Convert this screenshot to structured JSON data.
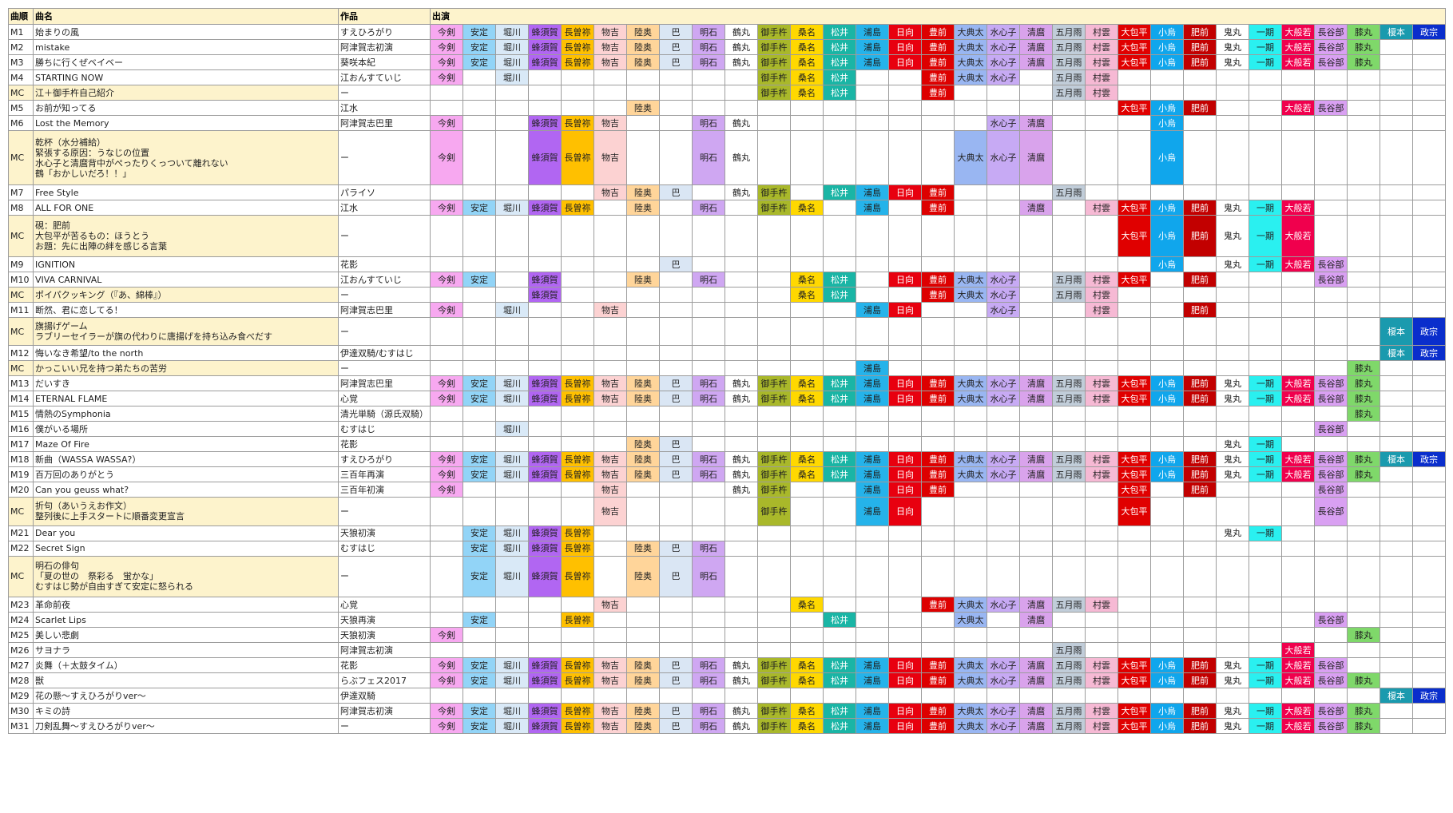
{
  "headers": {
    "order": "曲順",
    "title": "曲名",
    "work": "作品",
    "cast": "出演"
  },
  "performers": [
    {
      "key": "imatsurugi",
      "label": "今剣",
      "color": "#f7a8f0",
      "textColor": "#222222"
    },
    {
      "key": "yasusada",
      "label": "安定",
      "color": "#92d4f7",
      "textColor": "#222222"
    },
    {
      "key": "horikawa",
      "label": "堀川",
      "color": "#d9e9f7",
      "textColor": "#222222"
    },
    {
      "key": "hachisuka",
      "label": "蜂須賀",
      "color": "#b166f2",
      "textColor": "#222222"
    },
    {
      "key": "nagasone",
      "label": "長曽祢",
      "color": "#ffc000",
      "textColor": "#222222"
    },
    {
      "key": "monoyoshi",
      "label": "物吉",
      "color": "#fcd2d2",
      "textColor": "#222222"
    },
    {
      "key": "mutsunokami",
      "label": "陸奥",
      "color": "#ffd59a",
      "textColor": "#222222"
    },
    {
      "key": "tomoegata",
      "label": "巴",
      "color": "#dae6f4",
      "textColor": "#222222"
    },
    {
      "key": "akashi",
      "label": "明石",
      "color": "#cfa7f2",
      "textColor": "#222222"
    },
    {
      "key": "tsurumaru",
      "label": "鶴丸",
      "color": "#ffffff",
      "textColor": "#222222"
    },
    {
      "key": "otegine",
      "label": "御手杵",
      "color": "#a9b82a",
      "textColor": "#222222"
    },
    {
      "key": "kuwana",
      "label": "桑名",
      "color": "#ffd800",
      "textColor": "#222222"
    },
    {
      "key": "matsui",
      "label": "松井",
      "color": "#1ab5a5",
      "textColor": "#ffffff"
    },
    {
      "key": "urashima",
      "label": "浦島",
      "color": "#25b3ea",
      "textColor": "#222222"
    },
    {
      "key": "hyuga",
      "label": "日向",
      "color": "#e8000f",
      "textColor": "#ffffff"
    },
    {
      "key": "buzen",
      "label": "豊前",
      "color": "#dd0000",
      "textColor": "#ffffff"
    },
    {
      "key": "odenta",
      "label": "大典太",
      "color": "#99b6f2",
      "textColor": "#222222"
    },
    {
      "key": "suishinshi",
      "label": "水心子",
      "color": "#c7aaf4",
      "textColor": "#222222"
    },
    {
      "key": "kiyomaro",
      "label": "清麿",
      "color": "#d9a3ec",
      "textColor": "#222222"
    },
    {
      "key": "samidare",
      "label": "五月雨",
      "color": "#c1cdd9",
      "textColor": "#222222"
    },
    {
      "key": "murakumo",
      "label": "村雲",
      "color": "#f6b9d4",
      "textColor": "#222222"
    },
    {
      "key": "okanehira",
      "label": "大包平",
      "color": "#e00000",
      "textColor": "#ffffff"
    },
    {
      "key": "kogitsune",
      "label": "小烏",
      "color": "#10a6ec",
      "textColor": "#ffffff"
    },
    {
      "key": "hizen",
      "label": "肥前",
      "color": "#c20000",
      "textColor": "#ffffff"
    },
    {
      "key": "onimaru",
      "label": "鬼丸",
      "color": "#ffffff",
      "textColor": "#222222"
    },
    {
      "key": "ichigo",
      "label": "一期",
      "color": "#2af0f0",
      "textColor": "#222222"
    },
    {
      "key": "ohannya",
      "label": "大般若",
      "color": "#f0004d",
      "textColor": "#ffffff"
    },
    {
      "key": "hasebe",
      "label": "長谷部",
      "color": "#d9a0f2",
      "textColor": "#222222"
    },
    {
      "key": "hizamaru",
      "label": "膝丸",
      "color": "#7fd86a",
      "textColor": "#222222"
    },
    {
      "key": "enomoto",
      "label": "榎本",
      "color": "#1a9aae",
      "textColor": "#ffffff"
    },
    {
      "key": "masamune",
      "label": "政宗",
      "color": "#0a2ecc",
      "textColor": "#ffffff"
    }
  ],
  "rows": [
    {
      "order": "M1",
      "title": [
        "始まりの風"
      ],
      "work": "すえひろがり",
      "mc": false,
      "cast": [
        "imatsurugi",
        "yasusada",
        "horikawa",
        "hachisuka",
        "nagasone",
        "monoyoshi",
        "mutsunokami",
        "tomoegata",
        "akashi",
        "tsurumaru",
        "otegine",
        "kuwana",
        "matsui",
        "urashima",
        "hyuga",
        "buzen",
        "odenta",
        "suishinshi",
        "kiyomaro",
        "samidare",
        "murakumo",
        "okanehira",
        "kogitsune",
        "hizen",
        "onimaru",
        "ichigo",
        "ohannya",
        "hasebe",
        "hizamaru",
        "enomoto",
        "masamune"
      ]
    },
    {
      "order": "M2",
      "title": [
        "mistake"
      ],
      "work": "阿津賀志初演",
      "mc": false,
      "cast": [
        "imatsurugi",
        "yasusada",
        "horikawa",
        "hachisuka",
        "nagasone",
        "monoyoshi",
        "mutsunokami",
        "tomoegata",
        "akashi",
        "tsurumaru",
        "otegine",
        "kuwana",
        "matsui",
        "urashima",
        "hyuga",
        "buzen",
        "odenta",
        "suishinshi",
        "kiyomaro",
        "samidare",
        "murakumo",
        "okanehira",
        "kogitsune",
        "hizen",
        "onimaru",
        "ichigo",
        "ohannya",
        "hasebe",
        "hizamaru"
      ]
    },
    {
      "order": "M3",
      "title": [
        "勝ちに行くぜベイベー"
      ],
      "work": "葵咲本紀",
      "mc": false,
      "cast": [
        "imatsurugi",
        "yasusada",
        "horikawa",
        "hachisuka",
        "nagasone",
        "monoyoshi",
        "mutsunokami",
        "tomoegata",
        "akashi",
        "tsurumaru",
        "otegine",
        "kuwana",
        "matsui",
        "urashima",
        "hyuga",
        "buzen",
        "odenta",
        "suishinshi",
        "kiyomaro",
        "samidare",
        "murakumo",
        "okanehira",
        "kogitsune",
        "hizen",
        "onimaru",
        "ichigo",
        "ohannya",
        "hasebe",
        "hizamaru"
      ]
    },
    {
      "order": "M4",
      "title": [
        "STARTING NOW"
      ],
      "work": "江おんすていじ",
      "mc": false,
      "cast": [
        "imatsurugi",
        "horikawa",
        "otegine",
        "kuwana",
        "matsui",
        "buzen",
        "odenta",
        "suishinshi",
        "samidare",
        "murakumo"
      ]
    },
    {
      "order": "MC",
      "title": [
        "江＋御手杵自己紹介"
      ],
      "work": "ー",
      "mc": true,
      "cast": [
        "otegine",
        "kuwana",
        "matsui",
        "buzen",
        "samidare",
        "murakumo"
      ]
    },
    {
      "order": "M5",
      "title": [
        "お前が知ってる"
      ],
      "work": "江水",
      "mc": false,
      "cast": [
        "mutsunokami",
        "okanehira",
        "kogitsune",
        "hizen",
        "ohannya",
        "hasebe"
      ]
    },
    {
      "order": "M6",
      "title": [
        "Lost the Memory"
      ],
      "work": "阿津賀志巴里",
      "mc": false,
      "cast": [
        "imatsurugi",
        "hachisuka",
        "nagasone",
        "monoyoshi",
        "akashi",
        "tsurumaru",
        "suishinshi",
        "kiyomaro",
        "kogitsune"
      ]
    },
    {
      "order": "MC",
      "title": [
        "乾杯（水分補給）",
        "緊張する原因：うなじの位置",
        "水心子と清麿背中がぺったりくっついて離れない",
        "鶴「おかしいだろ！！」"
      ],
      "work": "ー",
      "mc": true,
      "cast": [
        "imatsurugi",
        "hachisuka",
        "nagasone",
        "monoyoshi",
        "akashi",
        "tsurumaru",
        "odenta",
        "suishinshi",
        "kiyomaro",
        "kogitsune"
      ]
    },
    {
      "order": "M7",
      "title": [
        "Free Style"
      ],
      "work": "パライソ",
      "mc": false,
      "cast": [
        "monoyoshi",
        "mutsunokami",
        "tomoegata",
        "tsurumaru",
        "otegine",
        "matsui",
        "urashima",
        "hyuga",
        "buzen",
        "samidare"
      ]
    },
    {
      "order": "M8",
      "title": [
        "ALL FOR ONE"
      ],
      "work": "江水",
      "mc": false,
      "cast": [
        "imatsurugi",
        "yasusada",
        "horikawa",
        "hachisuka",
        "nagasone",
        "mutsunokami",
        "akashi",
        "otegine",
        "kuwana",
        "urashima",
        "buzen",
        "kiyomaro",
        "murakumo",
        "okanehira",
        "kogitsune",
        "hizen",
        "onimaru",
        "ichigo",
        "ohannya"
      ]
    },
    {
      "order": "MC",
      "title": [
        "硯：肥前",
        "大包平が苦るもの：ほうとう",
        "お題：先に出陣の絆を感じる言葉"
      ],
      "work": "ー",
      "mc": true,
      "cast": [
        "okanehira",
        "kogitsune",
        "hizen",
        "onimaru",
        "ichigo",
        "ohannya"
      ]
    },
    {
      "order": "M9",
      "title": [
        "IGNITION"
      ],
      "work": "花影",
      "mc": false,
      "cast": [
        "tomoegata",
        "kogitsune",
        "onimaru",
        "ichigo",
        "ohannya",
        "hasebe"
      ]
    },
    {
      "order": "M10",
      "title": [
        "VIVA CARNIVAL"
      ],
      "work": "江おんすていじ",
      "mc": false,
      "cast": [
        "imatsurugi",
        "yasusada",
        "hachisuka",
        "mutsunokami",
        "akashi",
        "kuwana",
        "matsui",
        "hyuga",
        "buzen",
        "odenta",
        "suishinshi",
        "samidare",
        "murakumo",
        "okanehira",
        "hizen",
        "hasebe"
      ]
    },
    {
      "order": "MC",
      "title": [
        "ポイパクッキング（『あ、綿棒』）"
      ],
      "work": "ー",
      "mc": true,
      "cast": [
        "hachisuka",
        "kuwana",
        "matsui",
        "buzen",
        "odenta",
        "suishinshi",
        "samidare",
        "murakumo"
      ]
    },
    {
      "order": "M11",
      "title": [
        "断然、君に恋してる！"
      ],
      "work": "阿津賀志巴里",
      "mc": false,
      "cast": [
        "imatsurugi",
        "horikawa",
        "monoyoshi",
        "urashima",
        "hyuga",
        "suishinshi",
        "murakumo",
        "hizen"
      ]
    },
    {
      "order": "MC",
      "title": [
        "旗揚げゲーム",
        "ラブリーセイラーが旗の代わりに唐揚げを持ち込み食べだす"
      ],
      "work": "ー",
      "mc": true,
      "cast": [
        "enomoto",
        "masamune"
      ]
    },
    {
      "order": "M12",
      "title": [
        "悔いなき希望/to the north"
      ],
      "work": "伊達双騎/むすはじ",
      "mc": false,
      "cast": [
        "enomoto",
        "masamune"
      ]
    },
    {
      "order": "MC",
      "title": [
        "かっこいい兄を持つ弟たちの苦労"
      ],
      "work": "ー",
      "mc": true,
      "cast": [
        "urashima",
        "hizamaru"
      ]
    },
    {
      "order": "M13",
      "title": [
        "だいすき"
      ],
      "work": "阿津賀志巴里",
      "mc": false,
      "cast": [
        "imatsurugi",
        "yasusada",
        "horikawa",
        "hachisuka",
        "nagasone",
        "monoyoshi",
        "mutsunokami",
        "tomoegata",
        "akashi",
        "tsurumaru",
        "otegine",
        "kuwana",
        "matsui",
        "urashima",
        "hyuga",
        "buzen",
        "odenta",
        "suishinshi",
        "kiyomaro",
        "samidare",
        "murakumo",
        "okanehira",
        "kogitsune",
        "hizen",
        "onimaru",
        "ichigo",
        "ohannya",
        "hasebe",
        "hizamaru"
      ]
    },
    {
      "order": "M14",
      "title": [
        "ETERNAL FLAME"
      ],
      "work": "心覚",
      "mc": false,
      "cast": [
        "imatsurugi",
        "yasusada",
        "horikawa",
        "hachisuka",
        "nagasone",
        "monoyoshi",
        "mutsunokami",
        "tomoegata",
        "akashi",
        "tsurumaru",
        "otegine",
        "kuwana",
        "matsui",
        "urashima",
        "hyuga",
        "buzen",
        "odenta",
        "suishinshi",
        "kiyomaro",
        "samidare",
        "murakumo",
        "okanehira",
        "kogitsune",
        "hizen",
        "onimaru",
        "ichigo",
        "ohannya",
        "hasebe",
        "hizamaru"
      ]
    },
    {
      "order": "M15",
      "title": [
        "情熱のSymphonia"
      ],
      "work": "清光単騎（源氏双騎）",
      "mc": false,
      "cast": [
        "hizamaru"
      ]
    },
    {
      "order": "M16",
      "title": [
        "僕がいる場所"
      ],
      "work": "むすはじ",
      "mc": false,
      "cast": [
        "horikawa",
        "hasebe"
      ]
    },
    {
      "order": "M17",
      "title": [
        "Maze Of Fire"
      ],
      "work": "花影",
      "mc": false,
      "cast": [
        "mutsunokami",
        "tomoegata",
        "onimaru",
        "ichigo"
      ]
    },
    {
      "order": "M18",
      "title": [
        "新曲（WASSA WASSA?）"
      ],
      "work": "すえひろがり",
      "mc": false,
      "cast": [
        "imatsurugi",
        "yasusada",
        "horikawa",
        "hachisuka",
        "nagasone",
        "monoyoshi",
        "mutsunokami",
        "tomoegata",
        "akashi",
        "tsurumaru",
        "otegine",
        "kuwana",
        "matsui",
        "urashima",
        "hyuga",
        "buzen",
        "odenta",
        "suishinshi",
        "kiyomaro",
        "samidare",
        "murakumo",
        "okanehira",
        "kogitsune",
        "hizen",
        "onimaru",
        "ichigo",
        "ohannya",
        "hasebe",
        "hizamaru",
        "enomoto",
        "masamune"
      ]
    },
    {
      "order": "M19",
      "title": [
        "百万回のありがとう"
      ],
      "work": "三百年再演",
      "mc": false,
      "cast": [
        "imatsurugi",
        "yasusada",
        "horikawa",
        "hachisuka",
        "nagasone",
        "monoyoshi",
        "mutsunokami",
        "tomoegata",
        "akashi",
        "tsurumaru",
        "otegine",
        "kuwana",
        "matsui",
        "urashima",
        "hyuga",
        "buzen",
        "odenta",
        "suishinshi",
        "kiyomaro",
        "samidare",
        "murakumo",
        "okanehira",
        "kogitsune",
        "hizen",
        "onimaru",
        "ichigo",
        "ohannya",
        "hasebe",
        "hizamaru"
      ]
    },
    {
      "order": "M20",
      "title": [
        "Can you geuss what?"
      ],
      "work": "三百年初演",
      "mc": false,
      "cast": [
        "imatsurugi",
        "monoyoshi",
        "tsurumaru",
        "otegine",
        "urashima",
        "hyuga",
        "buzen",
        "okanehira",
        "hizen",
        "hasebe"
      ]
    },
    {
      "order": "MC",
      "title": [
        "折句（あいうえお作文）",
        "整列後に上手スタートに順番変更宣言"
      ],
      "work": "ー",
      "mc": true,
      "cast": [
        "monoyoshi",
        "otegine",
        "urashima",
        "hyuga",
        "okanehira",
        "hasebe"
      ]
    },
    {
      "order": "M21",
      "title": [
        "Dear you"
      ],
      "work": "天狼初演",
      "mc": false,
      "cast": [
        "yasusada",
        "horikawa",
        "hachisuka",
        "nagasone",
        "onimaru",
        "ichigo"
      ]
    },
    {
      "order": "M22",
      "title": [
        "Secret Sign"
      ],
      "work": "むすはじ",
      "mc": false,
      "cast": [
        "yasusada",
        "horikawa",
        "hachisuka",
        "nagasone",
        "mutsunokami",
        "tomoegata",
        "akashi"
      ]
    },
    {
      "order": "MC",
      "title": [
        "明石の俳句",
        "「夏の世の　祭彩る　蛍かな」",
        "むすはじ勢が自由すぎて安定に怒られる"
      ],
      "work": "ー",
      "mc": true,
      "cast": [
        "yasusada",
        "horikawa",
        "hachisuka",
        "nagasone",
        "mutsunokami",
        "tomoegata",
        "akashi"
      ]
    },
    {
      "order": "M23",
      "title": [
        "革命前夜"
      ],
      "work": "心覚",
      "mc": false,
      "cast": [
        "monoyoshi",
        "kuwana",
        "buzen",
        "odenta",
        "suishinshi",
        "kiyomaro",
        "samidare",
        "murakumo"
      ]
    },
    {
      "order": "M24",
      "title": [
        "Scarlet Lips"
      ],
      "work": "天狼再演",
      "mc": false,
      "cast": [
        "yasusada",
        "nagasone",
        "matsui",
        "odenta",
        "kiyomaro",
        "hasebe"
      ]
    },
    {
      "order": "M25",
      "title": [
        "美しい悲劇"
      ],
      "work": "天狼初演",
      "mc": false,
      "cast": [
        "imatsurugi",
        "hizamaru"
      ]
    },
    {
      "order": "M26",
      "title": [
        "サヨナラ"
      ],
      "work": "阿津賀志初演",
      "mc": false,
      "cast": [
        "samidare",
        "ohannya"
      ]
    },
    {
      "order": "M27",
      "title": [
        "炎舞（＋太鼓タイム）"
      ],
      "work": "花影",
      "mc": false,
      "cast": [
        "imatsurugi",
        "yasusada",
        "horikawa",
        "hachisuka",
        "nagasone",
        "monoyoshi",
        "mutsunokami",
        "tomoegata",
        "akashi",
        "tsurumaru",
        "otegine",
        "kuwana",
        "matsui",
        "urashima",
        "hyuga",
        "buzen",
        "odenta",
        "suishinshi",
        "kiyomaro",
        "samidare",
        "murakumo",
        "okanehira",
        "kogitsune",
        "hizen",
        "onimaru",
        "ichigo",
        "ohannya",
        "hasebe"
      ]
    },
    {
      "order": "M28",
      "title": [
        "獣"
      ],
      "work": "らぶフェス2017",
      "mc": false,
      "cast": [
        "imatsurugi",
        "yasusada",
        "horikawa",
        "hachisuka",
        "nagasone",
        "monoyoshi",
        "mutsunokami",
        "tomoegata",
        "akashi",
        "tsurumaru",
        "otegine",
        "kuwana",
        "matsui",
        "urashima",
        "hyuga",
        "buzen",
        "odenta",
        "suishinshi",
        "kiyomaro",
        "samidare",
        "murakumo",
        "okanehira",
        "kogitsune",
        "hizen",
        "onimaru",
        "ichigo",
        "ohannya",
        "hasebe",
        "hizamaru"
      ]
    },
    {
      "order": "M29",
      "title": [
        "花の懸〜すえひろがりver〜"
      ],
      "work": "伊達双騎",
      "mc": false,
      "cast": [
        "enomoto",
        "masamune"
      ]
    },
    {
      "order": "M30",
      "title": [
        "キミの詩"
      ],
      "work": "阿津賀志初演",
      "mc": false,
      "cast": [
        "imatsurugi",
        "yasusada",
        "horikawa",
        "hachisuka",
        "nagasone",
        "monoyoshi",
        "mutsunokami",
        "tomoegata",
        "akashi",
        "tsurumaru",
        "otegine",
        "kuwana",
        "matsui",
        "urashima",
        "hyuga",
        "buzen",
        "odenta",
        "suishinshi",
        "kiyomaro",
        "samidare",
        "murakumo",
        "okanehira",
        "kogitsune",
        "hizen",
        "onimaru",
        "ichigo",
        "ohannya",
        "hasebe",
        "hizamaru"
      ]
    },
    {
      "order": "M31",
      "title": [
        "刀剣乱舞〜すえひろがりver〜"
      ],
      "work": "ー",
      "mc": false,
      "cast": [
        "imatsurugi",
        "yasusada",
        "horikawa",
        "hachisuka",
        "nagasone",
        "monoyoshi",
        "mutsunokami",
        "tomoegata",
        "akashi",
        "tsurumaru",
        "otegine",
        "kuwana",
        "matsui",
        "urashima",
        "hyuga",
        "buzen",
        "odenta",
        "suishinshi",
        "kiyomaro",
        "samidare",
        "murakumo",
        "okanehira",
        "kogitsune",
        "hizen",
        "onimaru",
        "ichigo",
        "ohannya",
        "hasebe",
        "hizamaru"
      ]
    }
  ]
}
